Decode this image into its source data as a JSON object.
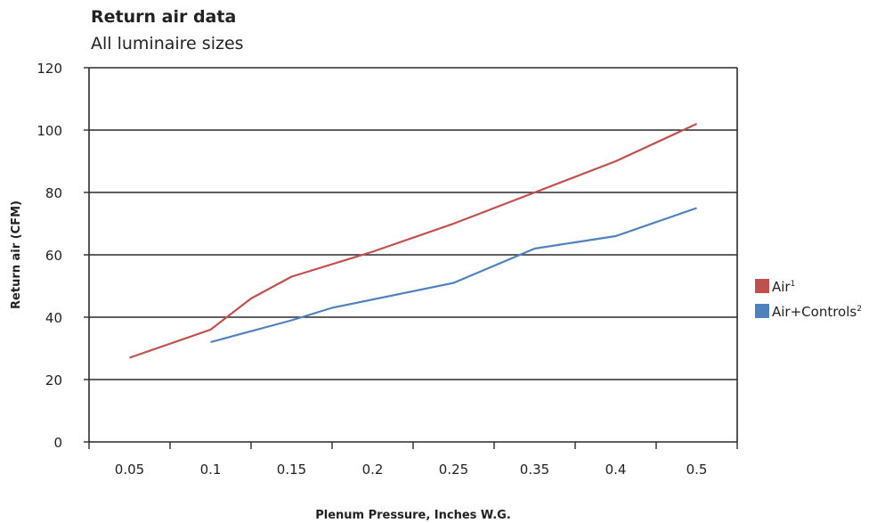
{
  "chart_data": {
    "type": "line",
    "title": "Return air data",
    "subtitle": "All luminaire sizes",
    "xlabel": "Plenum Pressure, Inches W.G.",
    "ylabel": "Return air (CFM)",
    "categories": [
      "0.05",
      "0.1",
      "0.15",
      "0.2",
      "0.25",
      "0.35",
      "0.4",
      "0.5"
    ],
    "ylim": [
      0,
      120
    ],
    "yticks": [
      "0",
      "20",
      "40",
      "60",
      "80",
      "100",
      "120"
    ],
    "grid": true,
    "legend_position": "right",
    "series": [
      {
        "name": "Air",
        "superscript": "1",
        "color": "#c0504d",
        "points": [
          {
            "x": 0.05,
            "y": 27
          },
          {
            "x": 0.1,
            "y": 36
          },
          {
            "x": 0.125,
            "y": 46
          },
          {
            "x": 0.15,
            "y": 53
          },
          {
            "x": 0.2,
            "y": 61
          },
          {
            "x": 0.25,
            "y": 70
          },
          {
            "x": 0.35,
            "y": 80
          },
          {
            "x": 0.4,
            "y": 90
          },
          {
            "x": 0.5,
            "y": 102
          }
        ]
      },
      {
        "name": "Air+Controls",
        "superscript": "2",
        "color": "#4f81bd",
        "points": [
          {
            "x": 0.1,
            "y": 32
          },
          {
            "x": 0.15,
            "y": 39
          },
          {
            "x": 0.175,
            "y": 43
          },
          {
            "x": 0.25,
            "y": 51
          },
          {
            "x": 0.35,
            "y": 62
          },
          {
            "x": 0.375,
            "y": 64
          },
          {
            "x": 0.4,
            "y": 66
          },
          {
            "x": 0.5,
            "y": 75
          }
        ]
      }
    ]
  }
}
